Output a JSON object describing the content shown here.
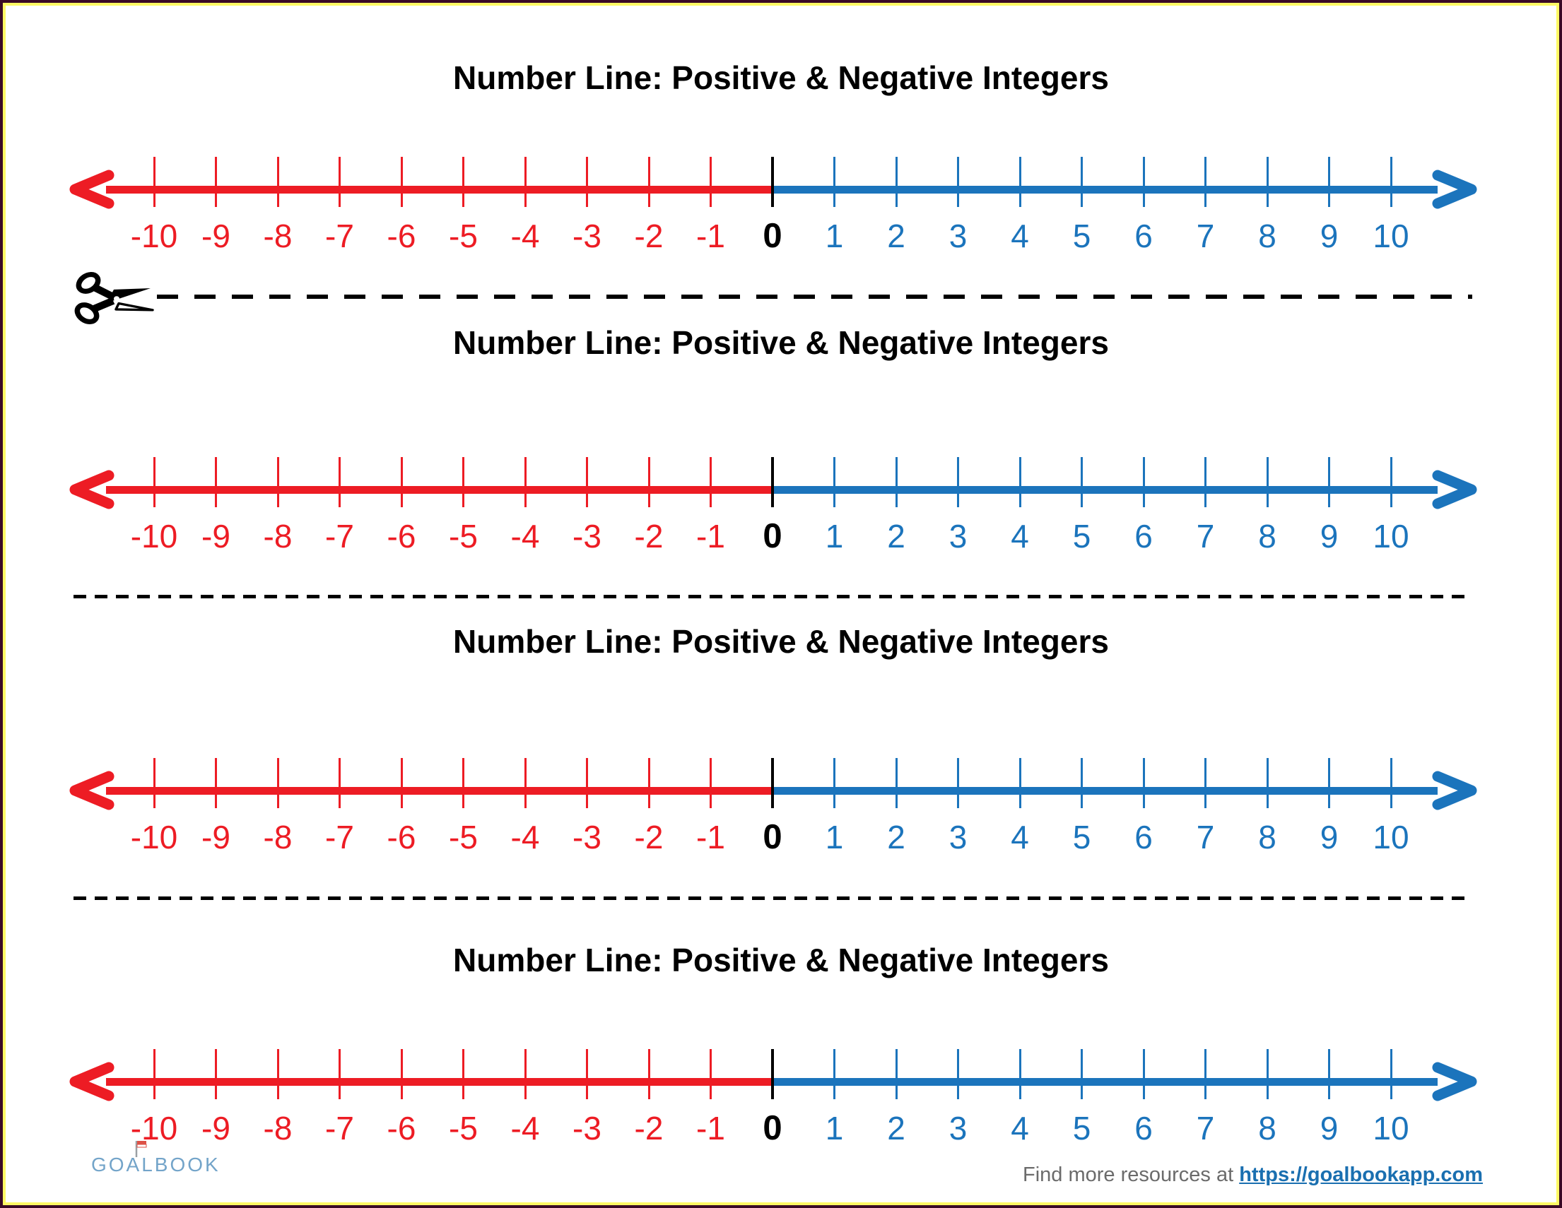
{
  "sections": [
    {
      "title": "Number Line: Positive & Negative Integers"
    },
    {
      "title": "Number Line: Positive & Negative Integers"
    },
    {
      "title": "Number Line: Positive & Negative Integers"
    },
    {
      "title": "Number Line: Positive & Negative Integers"
    }
  ],
  "numberline": {
    "labels": [
      "-10",
      "-9",
      "-8",
      "-7",
      "-6",
      "-5",
      "-4",
      "-3",
      "-2",
      "-1",
      "0",
      "1",
      "2",
      "3",
      "4",
      "5",
      "6",
      "7",
      "8",
      "9",
      "10"
    ],
    "negative_color": "#ed1c24",
    "positive_color": "#1b74bc",
    "zero_color": "#000000"
  },
  "colors": {
    "frame_outer": "#3a0a26",
    "frame_inner": "#fdf964",
    "logo_blue": "#73a4c9",
    "link_blue": "#1a6fb0"
  },
  "footer": {
    "logo": "GOALBOOK",
    "prefix": "Find more resources at",
    "link": "https://goalbookapp.com"
  }
}
